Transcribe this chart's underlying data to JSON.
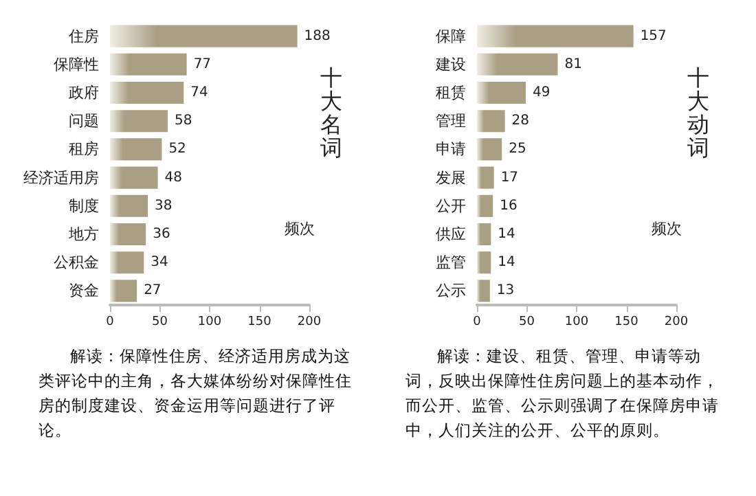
{
  "chart_data": [
    {
      "type": "bar",
      "orientation": "horizontal",
      "title": "十大名词",
      "xlabel": "频次",
      "categories": [
        "住房",
        "保障性",
        "政府",
        "问题",
        "租房",
        "经济适用房",
        "制度",
        "地方",
        "公积金",
        "资金"
      ],
      "values": [
        188,
        77,
        74,
        58,
        52,
        48,
        38,
        36,
        34,
        27
      ],
      "color": "#a89f84",
      "xlim": [
        0,
        200
      ],
      "xticks": [
        0,
        50,
        100,
        150,
        200
      ],
      "data_labels": true,
      "annotations": [
        "解读：保障性住房、经济适用房成为这类评论中的主角，各大媒体纷纷对保障性住房的制度建设、资金运用等问题进行了评论。"
      ]
    },
    {
      "type": "bar",
      "orientation": "horizontal",
      "title": "十大动词",
      "xlabel": "频次",
      "categories": [
        "保障",
        "建设",
        "租赁",
        "管理",
        "申请",
        "发展",
        "公开",
        "供应",
        "监管",
        "公示"
      ],
      "values": [
        157,
        81,
        49,
        28,
        25,
        17,
        16,
        14,
        14,
        13
      ],
      "color": "#a89f84",
      "xlim": [
        0,
        200
      ],
      "xticks": [
        0,
        50,
        100,
        150,
        200
      ],
      "data_labels": true,
      "annotations": [
        "解读：建设、租赁、管理、申请等动词，反映出保障性住房问题上的基本动作，而公开、监管、公示则强调了在保障房申请中，人们关注的公开、公平的原则。"
      ]
    }
  ]
}
